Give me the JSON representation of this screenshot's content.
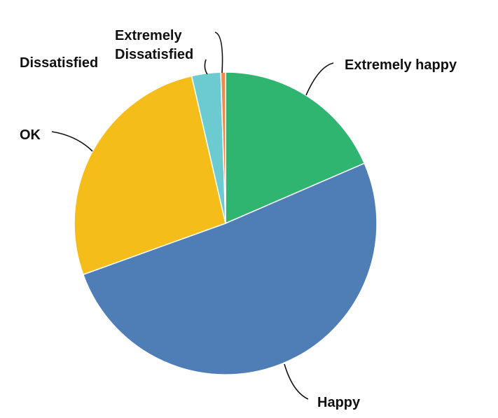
{
  "chart_data": {
    "type": "pie",
    "start_angle_deg": 0,
    "direction": "clockwise",
    "slices": [
      {
        "label": "Extremely happy",
        "label_lines": [
          "Extremely happy"
        ],
        "value": 18.5,
        "color": "#2fb56f"
      },
      {
        "label": "Happy",
        "label_lines": [
          "Happy"
        ],
        "value": 51.0,
        "color": "#4f7db5"
      },
      {
        "label": "OK",
        "label_lines": [
          "OK"
        ],
        "value": 26.9,
        "color": "#f5bd19"
      },
      {
        "label": "Dissatisfied",
        "label_lines": [
          "Dissatisfied"
        ],
        "value": 3.1,
        "color": "#6bcbd0"
      },
      {
        "label": "Extremely Dissatisfied",
        "label_lines": [
          "Extremely",
          "Dissatisfied"
        ],
        "value": 0.5,
        "color": "#f08a4b"
      }
    ]
  }
}
